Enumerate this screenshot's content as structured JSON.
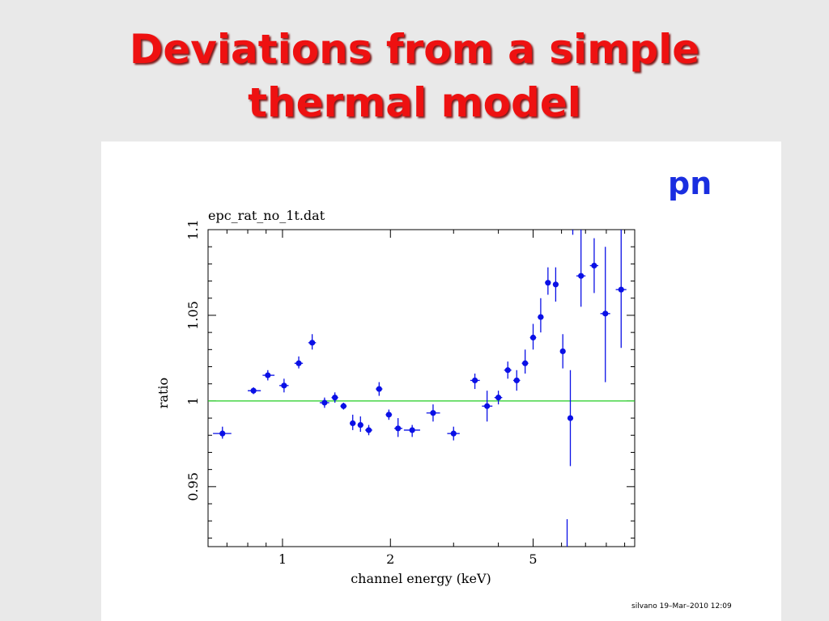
{
  "slide": {
    "title_line1": "Deviations from a simple",
    "title_line2": "thermal model",
    "title_color": "#ee1111",
    "background": "#e9e9e9"
  },
  "panel": {
    "detector_label": "pn",
    "detector_color": "#1a2ee0",
    "footer": "silvano 19–Mar–2010 12:09"
  },
  "chart_data": {
    "type": "scatter",
    "title": "epc_rat_no_1t.dat",
    "xlabel": "channel energy (keV)",
    "ylabel": "ratio",
    "x_scale": "log",
    "xlim": [
      0.62,
      9.6
    ],
    "ylim": [
      0.915,
      1.1
    ],
    "xticks_major": [
      {
        "value": 1,
        "label": "1"
      },
      {
        "value": 2,
        "label": "2"
      },
      {
        "value": 5,
        "label": "5"
      }
    ],
    "yticks_major": [
      {
        "value": 0.95,
        "label": "0.95"
      },
      {
        "value": 1,
        "label": "1"
      },
      {
        "value": 1.05,
        "label": "1.05"
      },
      {
        "value": 1.1,
        "label": "1.1"
      }
    ],
    "reference_line": {
      "y": 1,
      "color": "#22cc22"
    },
    "marker_color": "#0a10e6",
    "grid": false,
    "points": [
      {
        "x": 0.68,
        "y": 0.981,
        "xerr": [
          0.64,
          0.72
        ],
        "yerr": [
          0.978,
          0.985
        ]
      },
      {
        "x": 0.83,
        "y": 1.006,
        "xerr": [
          0.8,
          0.87
        ],
        "yerr": [
          1.004,
          1.008
        ]
      },
      {
        "x": 0.91,
        "y": 1.015,
        "xerr": [
          0.88,
          0.95
        ],
        "yerr": [
          1.012,
          1.018
        ]
      },
      {
        "x": 1.01,
        "y": 1.009,
        "xerr": [
          0.98,
          1.04
        ],
        "yerr": [
          1.005,
          1.013
        ]
      },
      {
        "x": 1.11,
        "y": 1.022,
        "xerr": [
          1.08,
          1.14
        ],
        "yerr": [
          1.019,
          1.026
        ]
      },
      {
        "x": 1.21,
        "y": 1.034,
        "xerr": [
          1.18,
          1.24
        ],
        "yerr": [
          1.03,
          1.039
        ]
      },
      {
        "x": 1.31,
        "y": 0.999,
        "xerr": [
          1.27,
          1.35
        ],
        "yerr": [
          0.996,
          1.002
        ]
      },
      {
        "x": 1.4,
        "y": 1.002,
        "xerr": [
          1.37,
          1.43
        ],
        "yerr": [
          0.999,
          1.005
        ]
      },
      {
        "x": 1.48,
        "y": 0.997,
        "xerr": [
          1.45,
          1.51
        ],
        "yerr": [
          0.995,
          0.999
        ]
      },
      {
        "x": 1.57,
        "y": 0.987,
        "xerr": [
          1.54,
          1.6
        ],
        "yerr": [
          0.983,
          0.992
        ]
      },
      {
        "x": 1.65,
        "y": 0.986,
        "xerr": [
          1.62,
          1.68
        ],
        "yerr": [
          0.982,
          0.991
        ]
      },
      {
        "x": 1.74,
        "y": 0.983,
        "xerr": [
          1.7,
          1.78
        ],
        "yerr": [
          0.98,
          0.986
        ]
      },
      {
        "x": 1.86,
        "y": 1.007,
        "xerr": [
          1.82,
          1.9
        ],
        "yerr": [
          1.003,
          1.011
        ]
      },
      {
        "x": 1.98,
        "y": 0.992,
        "xerr": [
          1.94,
          2.02
        ],
        "yerr": [
          0.989,
          0.995
        ]
      },
      {
        "x": 2.1,
        "y": 0.984,
        "xerr": [
          2.05,
          2.16
        ],
        "yerr": [
          0.979,
          0.99
        ]
      },
      {
        "x": 2.3,
        "y": 0.983,
        "xerr": [
          2.18,
          2.42
        ],
        "yerr": [
          0.979,
          0.986
        ]
      },
      {
        "x": 2.63,
        "y": 0.993,
        "xerr": [
          2.52,
          2.75
        ],
        "yerr": [
          0.988,
          0.998
        ]
      },
      {
        "x": 3.0,
        "y": 0.981,
        "xerr": [
          2.88,
          3.12
        ],
        "yerr": [
          0.977,
          0.985
        ]
      },
      {
        "x": 3.44,
        "y": 1.012,
        "xerr": [
          3.34,
          3.55
        ],
        "yerr": [
          1.007,
          1.016
        ]
      },
      {
        "x": 3.72,
        "y": 0.997,
        "xerr": [
          3.6,
          3.85
        ],
        "yerr": [
          0.988,
          1.006
        ]
      },
      {
        "x": 4.0,
        "y": 1.002,
        "xerr": [
          3.9,
          4.1
        ],
        "yerr": [
          0.998,
          1.006
        ]
      },
      {
        "x": 4.25,
        "y": 1.018,
        "xerr": [
          4.15,
          4.35
        ],
        "yerr": [
          1.013,
          1.023
        ]
      },
      {
        "x": 4.5,
        "y": 1.012,
        "xerr": [
          4.4,
          4.6
        ],
        "yerr": [
          1.006,
          1.018
        ]
      },
      {
        "x": 4.75,
        "y": 1.022,
        "xerr": [
          4.65,
          4.85
        ],
        "yerr": [
          1.016,
          1.03
        ]
      },
      {
        "x": 5.0,
        "y": 1.037,
        "xerr": [
          4.9,
          5.1
        ],
        "yerr": [
          1.03,
          1.045
        ]
      },
      {
        "x": 5.25,
        "y": 1.049,
        "xerr": [
          5.15,
          5.35
        ],
        "yerr": [
          1.04,
          1.06
        ]
      },
      {
        "x": 5.5,
        "y": 1.069,
        "xerr": [
          5.4,
          5.6
        ],
        "yerr": [
          1.062,
          1.078
        ]
      },
      {
        "x": 5.78,
        "y": 1.068,
        "xerr": [
          5.68,
          5.88
        ],
        "yerr": [
          1.058,
          1.078
        ]
      },
      {
        "x": 6.05,
        "y": 1.029,
        "xerr": [
          5.98,
          6.12
        ],
        "yerr": [
          1.019,
          1.039
        ]
      },
      {
        "x": 6.35,
        "y": 0.99,
        "xerr": [
          6.3,
          6.4
        ],
        "yerr": [
          0.962,
          1.018
        ]
      },
      {
        "x": 6.8,
        "y": 1.073,
        "xerr": [
          6.6,
          7.0
        ],
        "yerr": [
          1.055,
          1.1
        ]
      },
      {
        "x": 7.4,
        "y": 1.079,
        "xerr": [
          7.2,
          7.6
        ],
        "yerr": [
          1.063,
          1.095
        ]
      },
      {
        "x": 7.95,
        "y": 1.051,
        "xerr": [
          7.7,
          8.2
        ],
        "yerr": [
          1.011,
          1.09
        ]
      },
      {
        "x": 8.8,
        "y": 1.065,
        "xerr": [
          8.5,
          9.1
        ],
        "yerr": [
          1.031,
          1.1
        ]
      }
    ],
    "extra_error_bars": [
      {
        "x": 6.22,
        "ylow": 0.915,
        "yhigh": 0.931
      },
      {
        "x": 6.45,
        "ylow": 1.097,
        "yhigh": 1.1
      }
    ]
  }
}
